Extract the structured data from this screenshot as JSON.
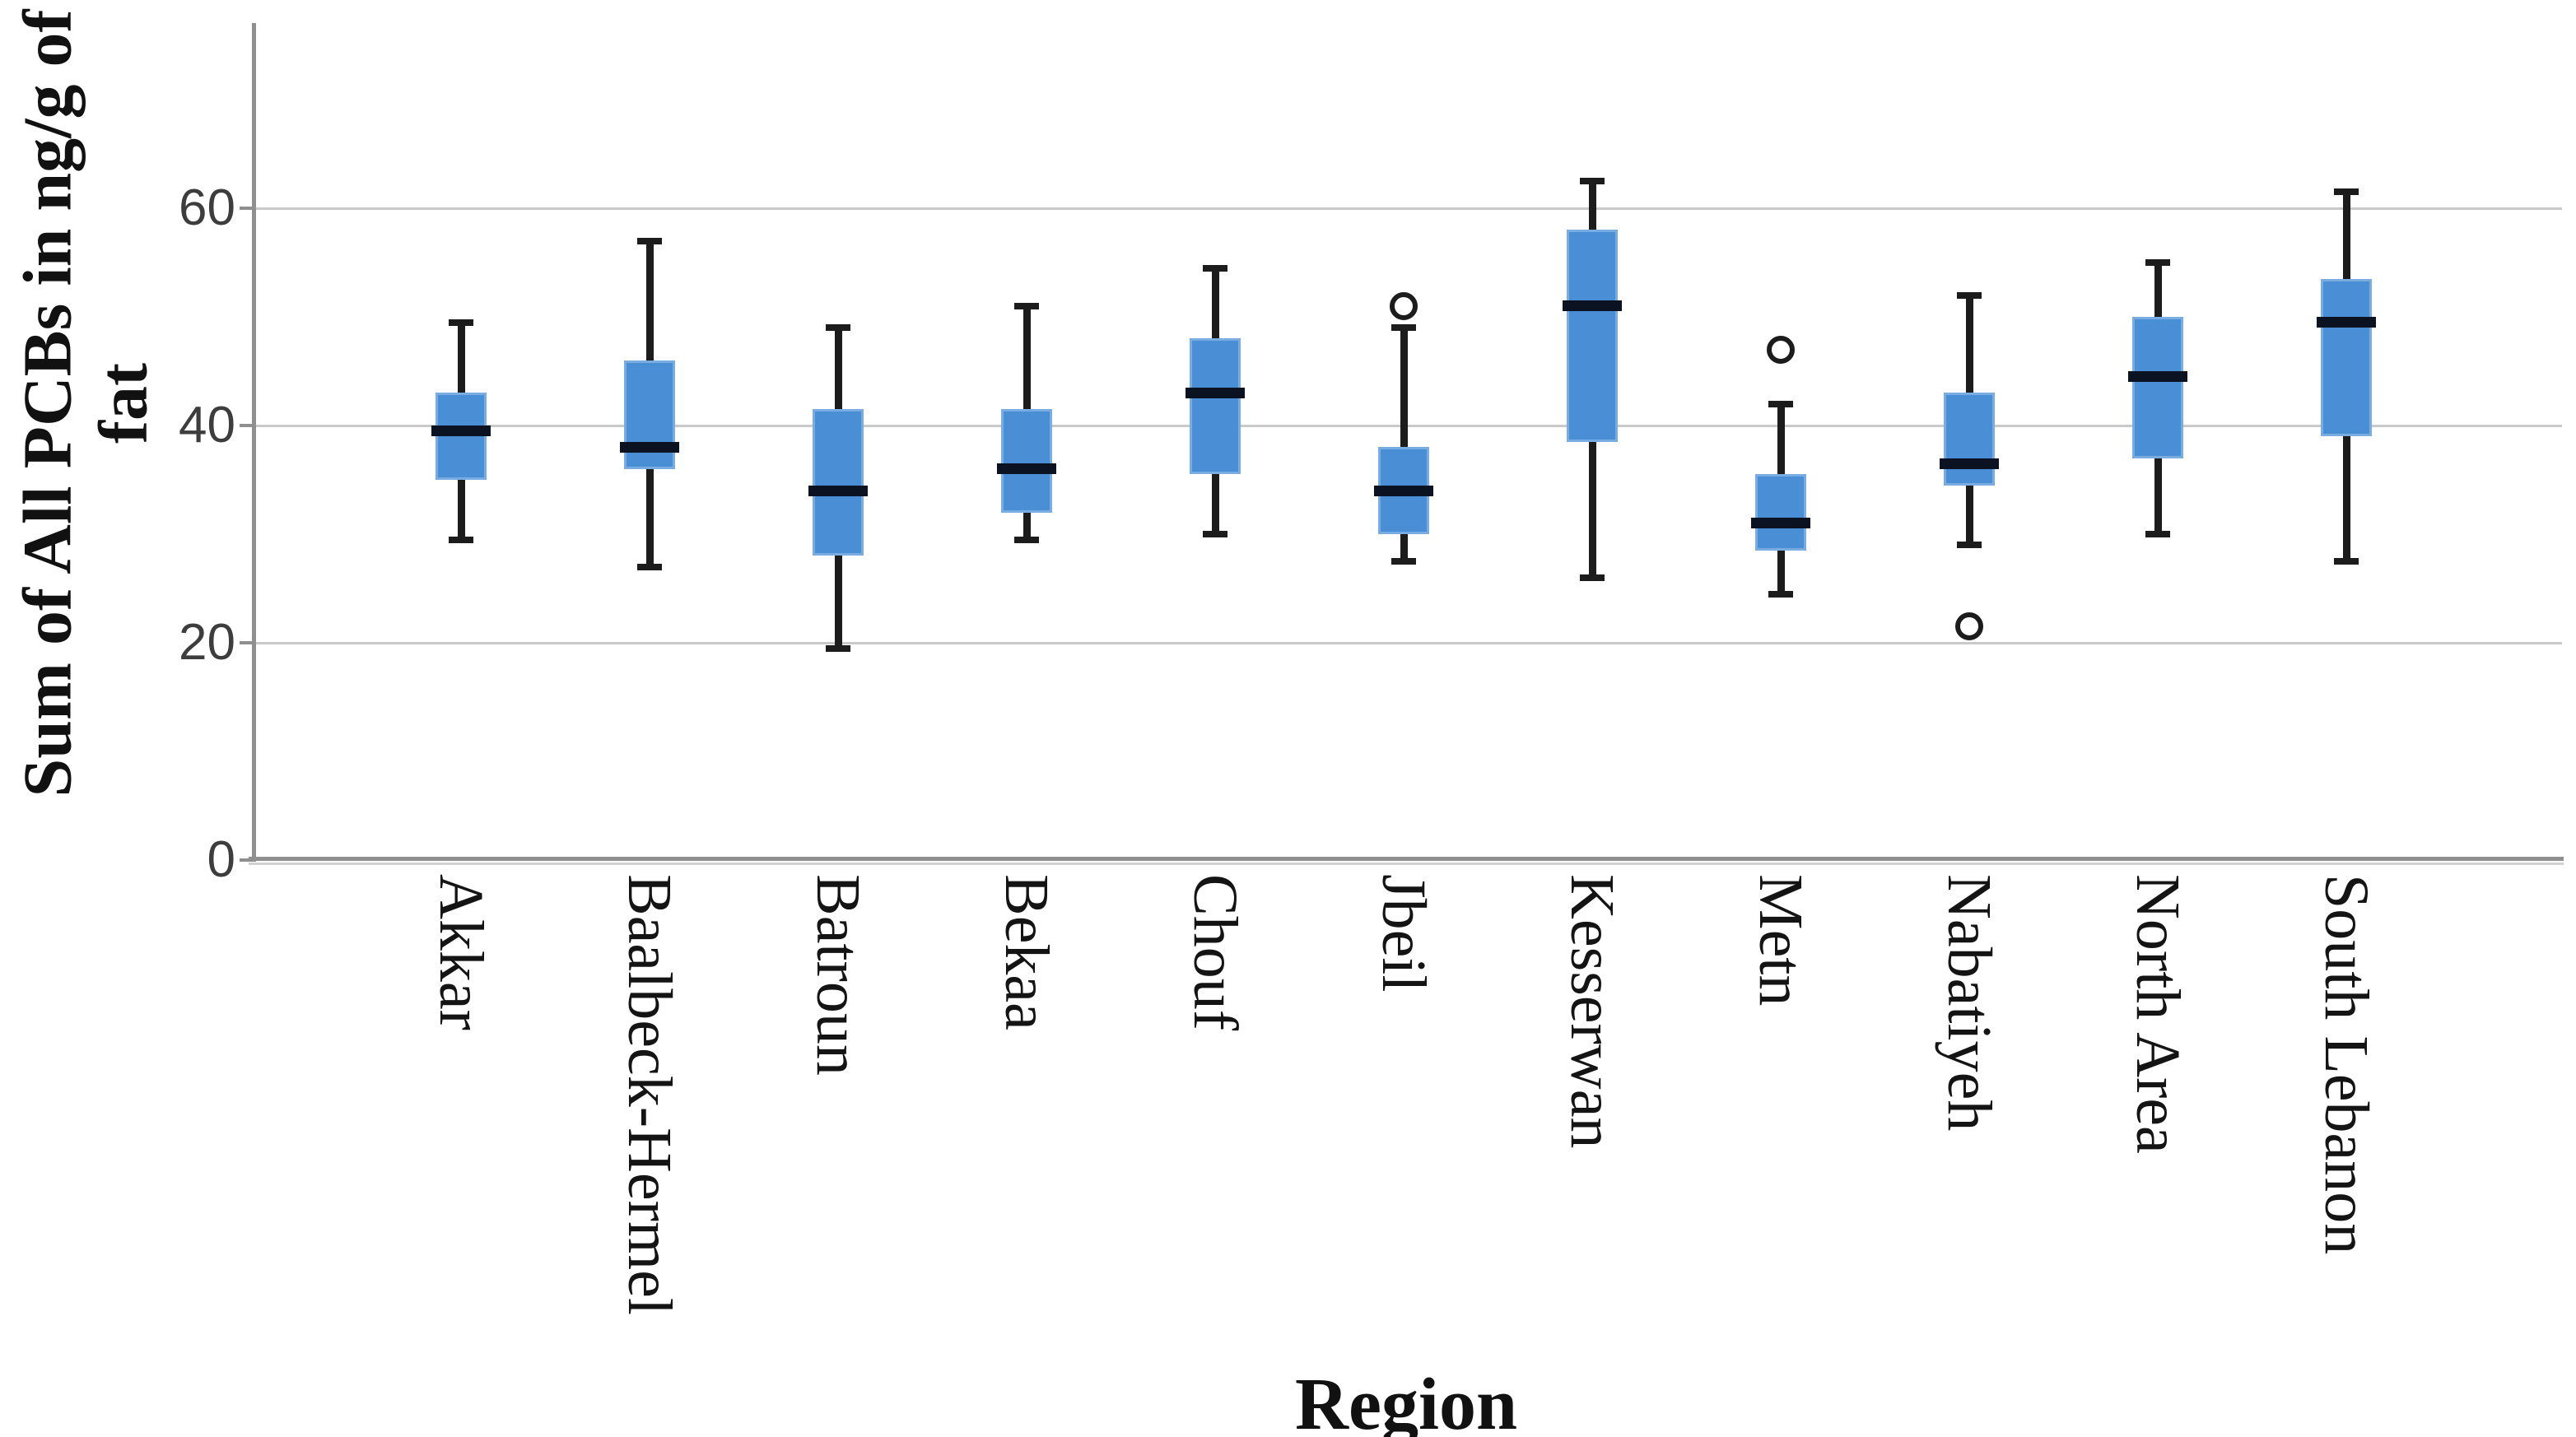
{
  "chart_data": {
    "type": "boxplot",
    "title": "",
    "xlabel": "Region",
    "ylabel_lines": [
      "Sum of All PCBs in ng/g of",
      "fat"
    ],
    "ylabel_full": "Sum of All PCBs in ng/g of fat",
    "yticks": [
      0,
      20,
      40,
      60
    ],
    "ylim": [
      0,
      77
    ],
    "gridlines_y": [
      20,
      40,
      60
    ],
    "grid": "horizontal",
    "legend": "none",
    "categories": [
      "Akkar",
      "Baalbeck-Hermel",
      "Batroun",
      "Bekaa",
      "Chouf",
      "Jbeil",
      "Kesserwan",
      "Metn",
      "Nabatiyeh",
      "North Area",
      "South Lebanon"
    ],
    "series": [
      {
        "region": "Akkar",
        "min": 29.5,
        "q1": 35,
        "median": 39.5,
        "q3": 43,
        "max": 49.5,
        "outliers": []
      },
      {
        "region": "Baalbeck-Hermel",
        "min": 27,
        "q1": 36,
        "median": 38,
        "q3": 46,
        "max": 57,
        "outliers": []
      },
      {
        "region": "Batroun",
        "min": 19.5,
        "q1": 28,
        "median": 34,
        "q3": 41.5,
        "max": 49,
        "outliers": []
      },
      {
        "region": "Bekaa",
        "min": 29.5,
        "q1": 32,
        "median": 36,
        "q3": 41.5,
        "max": 51,
        "outliers": []
      },
      {
        "region": "Chouf",
        "min": 30,
        "q1": 35.5,
        "median": 43,
        "q3": 48,
        "max": 54.5,
        "outliers": []
      },
      {
        "region": "Jbeil",
        "min": 27.5,
        "q1": 30,
        "median": 34,
        "q3": 38,
        "max": 49,
        "outliers": [
          51
        ]
      },
      {
        "region": "Kesserwan",
        "min": 26,
        "q1": 38.5,
        "median": 51,
        "q3": 58,
        "max": 62.5,
        "outliers": []
      },
      {
        "region": "Metn",
        "min": 24.5,
        "q1": 28.5,
        "median": 31,
        "q3": 35.5,
        "max": 42,
        "outliers": [
          47
        ]
      },
      {
        "region": "Nabatiyeh",
        "min": 29,
        "q1": 34.5,
        "median": 36.5,
        "q3": 43,
        "max": 52,
        "outliers": [
          21.5
        ]
      },
      {
        "region": "North Area",
        "min": 30,
        "q1": 37,
        "median": 44.5,
        "q3": 50,
        "max": 55,
        "outliers": []
      },
      {
        "region": "South Lebanon",
        "min": 27.5,
        "q1": 39,
        "median": 49.5,
        "q3": 53.5,
        "max": 61.5,
        "outliers": []
      }
    ],
    "colors": {
      "box_fill": "#4A8ED5",
      "box_border": "#79ADE2",
      "median": "#0B1322",
      "whisker": "#1C1C1C",
      "outlier_stroke": "#1C1C1C",
      "gridline": "#C9C9C9",
      "axis": "#8F8F8F",
      "tick_label": "#3D3D3D",
      "text": "#111111",
      "background": "#FFFFFF"
    }
  }
}
